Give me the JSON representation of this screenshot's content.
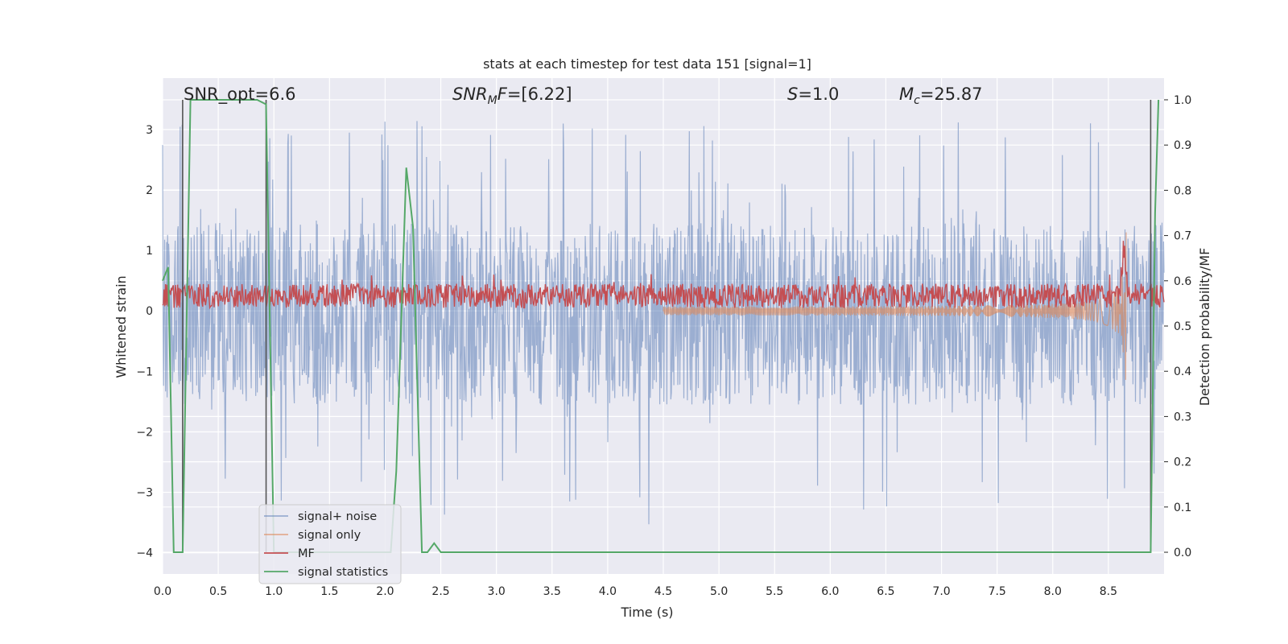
{
  "chart_data": {
    "type": "line",
    "title": "stats at each timestep for test data 151 [signal=1]",
    "xlabel": "Time (s)",
    "ylabel": "Whitened strain",
    "y2label": "Detection probability/MF",
    "xlim": [
      0.0,
      9.0
    ],
    "ylim": [
      -4.35,
      3.85
    ],
    "y2lim": [
      -0.048,
      1.048
    ],
    "grid": true,
    "legend_position": "lower-left",
    "xticks": [
      "0.0",
      "0.5",
      "1.0",
      "1.5",
      "2.0",
      "2.5",
      "3.0",
      "3.5",
      "4.0",
      "4.5",
      "5.0",
      "5.5",
      "6.0",
      "6.5",
      "7.0",
      "7.5",
      "8.0",
      "8.5"
    ],
    "yticks": [
      "3",
      "2",
      "1",
      "0",
      "−1",
      "−2",
      "−3",
      "−4"
    ],
    "y2ticks": [
      "1.0",
      "0.9",
      "0.8",
      "0.7",
      "0.6",
      "0.5",
      "0.4",
      "0.3",
      "0.2",
      "0.1",
      "0.0"
    ],
    "annotations": {
      "snr_opt": "SNR_opt=6.6",
      "snr_mf_sym": "SNR",
      "snr_mf_sub": "M",
      "snr_mf_sym2": "F",
      "snr_mf_val": "=[6.22]",
      "s_sym": "S",
      "s_val": "=1.0",
      "mc_sym": "M",
      "mc_sub": "c",
      "mc_val": "=25.87"
    },
    "vertical_markers_x": [
      0.18,
      0.93,
      8.88
    ],
    "series": [
      {
        "name": "signal+ noise",
        "color": "#4c72b0",
        "opacity": 0.5,
        "axis": "left",
        "band_y": [
          -1.55,
          1.45
        ],
        "peaks_y": [
          2.95,
          3.1,
          3.2,
          3.25,
          3.3,
          3.3,
          3.35
        ],
        "troughs_y": [
          -4.0,
          -3.6,
          -3.3,
          -3.25,
          -3.15
        ]
      },
      {
        "name": "signal only",
        "color": "#dd8452",
        "opacity": 0.6,
        "axis": "left",
        "chirp_end_x": 8.66,
        "chirp_peak_y": [
          1.3,
          -1.45
        ]
      },
      {
        "name": "MF",
        "color": "#c44e52",
        "opacity": 1.0,
        "axis": "left",
        "band_y": [
          0.05,
          0.45
        ],
        "peak_x": 8.64,
        "peak_y": 1.3
      },
      {
        "name": "signal statistics",
        "color": "#55a868",
        "opacity": 1.0,
        "axis": "right",
        "x": [
          0.0,
          0.05,
          0.1,
          0.13,
          0.18,
          0.25,
          0.5,
          0.85,
          0.93,
          1.0,
          1.05,
          2.05,
          2.1,
          2.19,
          2.25,
          2.33,
          2.38,
          2.44,
          2.5,
          8.88,
          8.92,
          8.95
        ],
        "y": [
          0.6,
          0.63,
          0.0,
          0.0,
          0.0,
          1.0,
          1.0,
          1.0,
          0.99,
          0.0,
          0.0,
          0.0,
          0.18,
          0.85,
          0.72,
          0.0,
          0.0,
          0.02,
          0.0,
          0.0,
          0.75,
          1.0
        ]
      }
    ]
  }
}
